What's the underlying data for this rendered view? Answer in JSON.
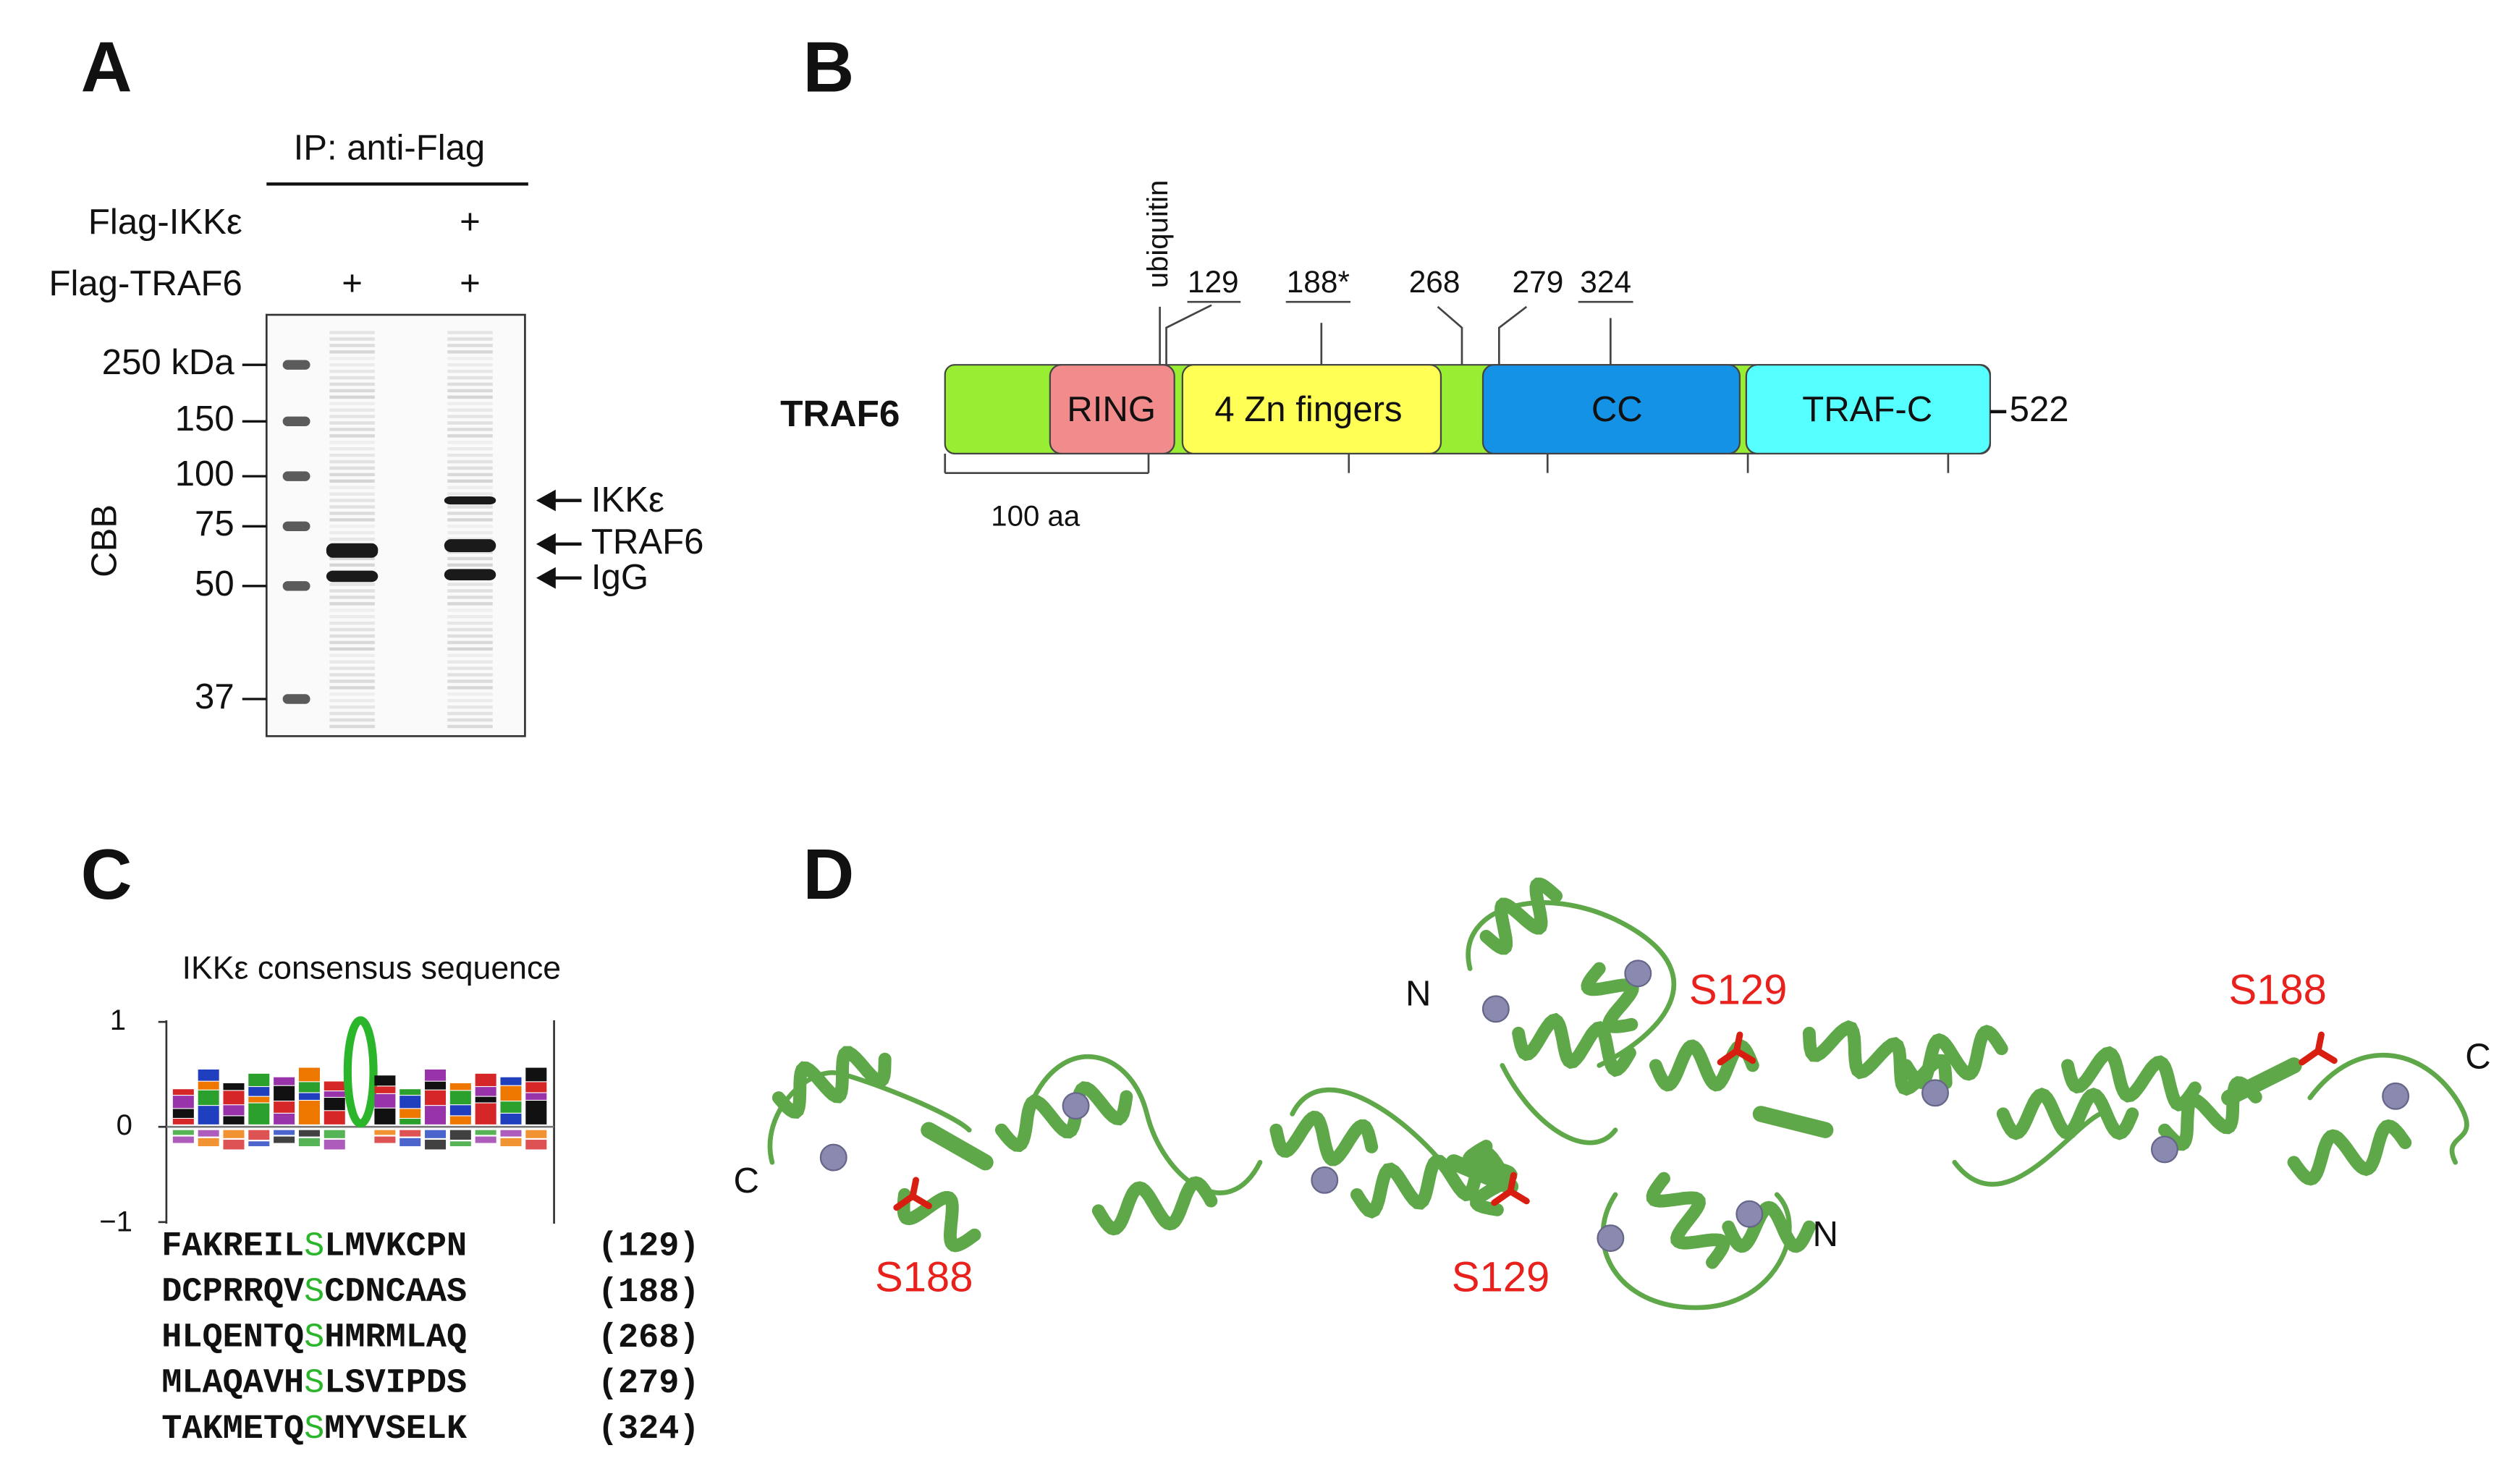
{
  "panel_a": {
    "letter": "A",
    "ip": "IP: anti-Flag",
    "rows": [
      {
        "label": "Flag-IKKε",
        "marks": [
          "+"
        ]
      },
      {
        "label": "Flag-TRAF6",
        "marks": [
          "+",
          "+"
        ]
      }
    ],
    "markers": [
      "250 kDa",
      "150",
      "100",
      "75",
      "50",
      "37"
    ],
    "stain": "CBB",
    "arrows": [
      "IKKε",
      "TRAF6",
      "IgG"
    ]
  },
  "panel_b": {
    "letter": "B",
    "protein": "TRAF6",
    "domains": [
      "RING",
      "4 Zn fingers",
      "CC",
      "TRAF-C"
    ],
    "end": "522",
    "modification": "ubiquitin",
    "sites": [
      "129",
      "188*",
      "268",
      "279",
      "324"
    ],
    "scale": "100 aa"
  },
  "panel_c": {
    "letter": "C",
    "title": "IKKε consensus sequence",
    "axis": [
      "1",
      "0",
      "−1"
    ],
    "sequences": [
      {
        "before": "FAKREIL",
        "site": "S",
        "after": "LMVKCPN",
        "position": "(129)"
      },
      {
        "before": "DCPRRQV",
        "site": "S",
        "after": "CDNCAAS",
        "position": "(188)"
      },
      {
        "before": "HLQENTQ",
        "site": "S",
        "after": "HMRMLAQ",
        "position": "(268)"
      },
      {
        "before": "MLAQAVH",
        "site": "S",
        "after": "LSVIPDS",
        "position": "(279)"
      },
      {
        "before": "TAKMETQ",
        "site": "S",
        "after": "MYVSELK",
        "position": "(324)"
      }
    ]
  },
  "panel_d": {
    "letter": "D",
    "labels": [
      "N",
      "S129",
      "S188",
      "C",
      "C",
      "S188",
      "S129",
      "N"
    ]
  }
}
